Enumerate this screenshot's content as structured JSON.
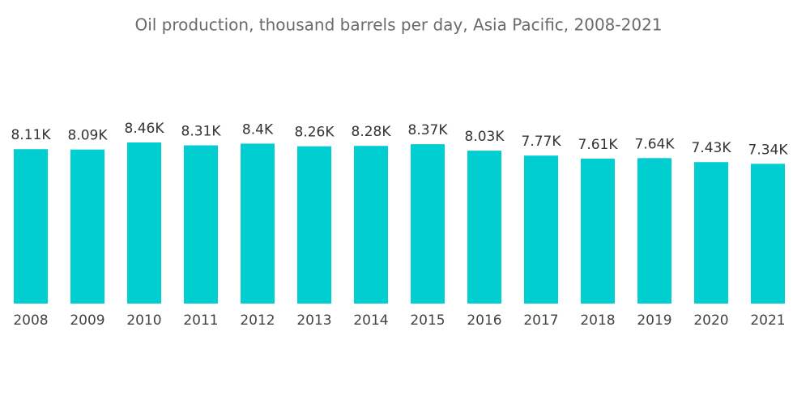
{
  "chart_data": {
    "type": "bar",
    "title": "Oil production, thousand barrels per day, Asia Pacific, 2008-2021",
    "categories": [
      "2008",
      "2009",
      "2010",
      "2011",
      "2012",
      "2013",
      "2014",
      "2015",
      "2016",
      "2017",
      "2018",
      "2019",
      "2020",
      "2021"
    ],
    "values": [
      8110,
      8090,
      8460,
      8310,
      8400,
      8260,
      8280,
      8370,
      8030,
      7770,
      7610,
      7640,
      7430,
      7340
    ],
    "value_labels": [
      "8.11K",
      "8.09K",
      "8.46K",
      "8.31K",
      "8.4K",
      "8.26K",
      "8.28K",
      "8.37K",
      "8.03K",
      "7.77K",
      "7.61K",
      "7.64K",
      "7.43K",
      "7.34K"
    ],
    "color": "#00CED1"
  }
}
